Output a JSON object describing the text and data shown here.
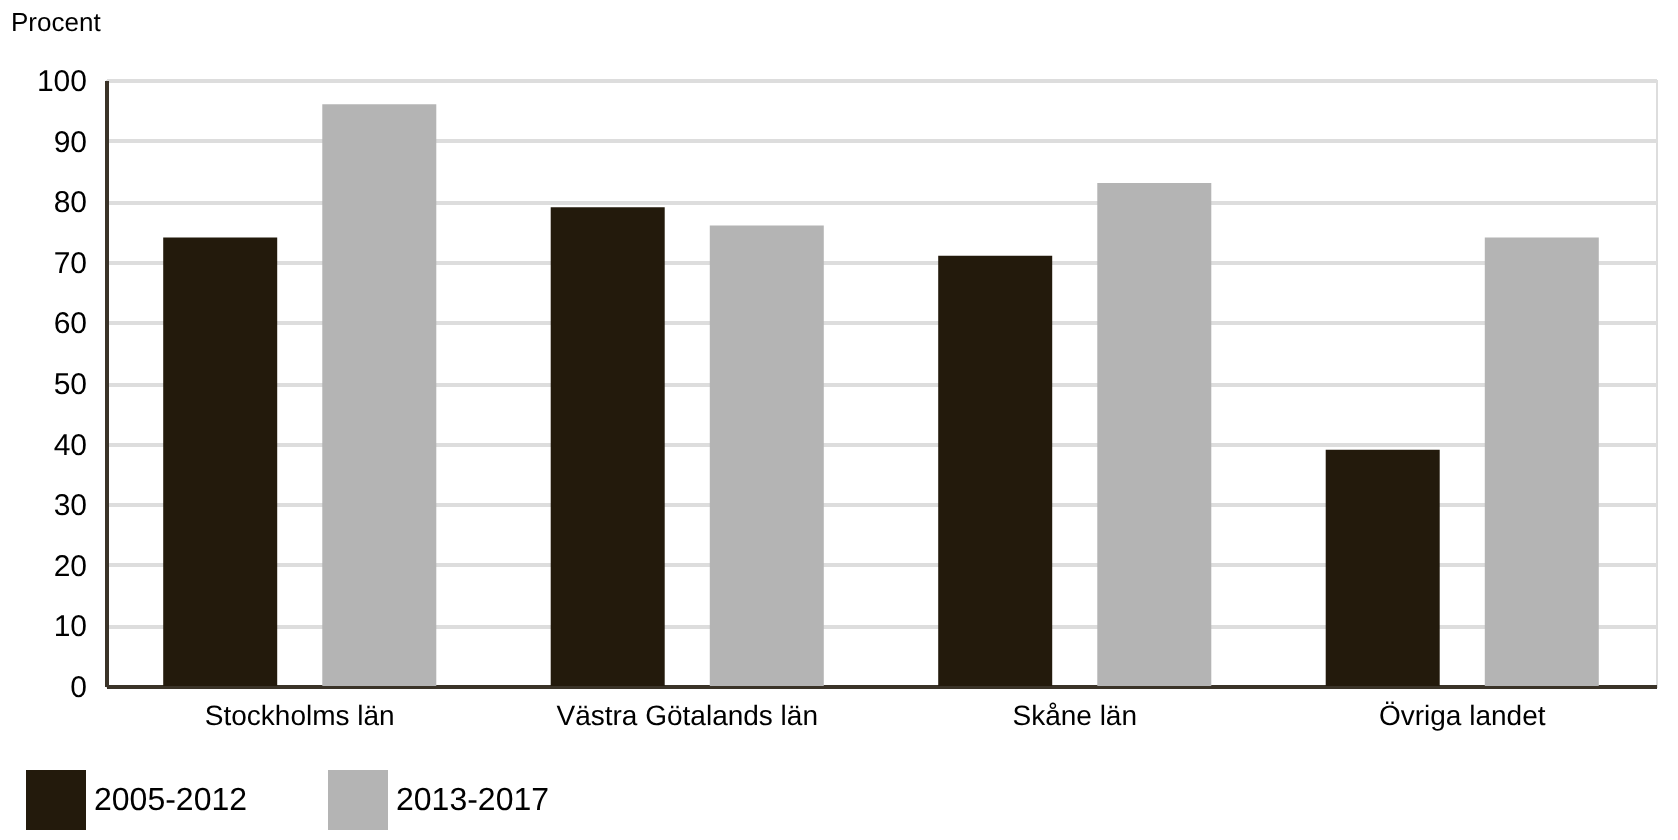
{
  "chart_data": {
    "type": "bar",
    "ylabel": "Procent",
    "categories": [
      "Stockholms län",
      "Västra Götalands län",
      "Skåne län",
      "Övriga landet"
    ],
    "series": [
      {
        "name": "2005-2012",
        "color": "#231a0c",
        "values": [
          74,
          79,
          71,
          39
        ]
      },
      {
        "name": "2013-2017",
        "color": "#b4b4b4",
        "values": [
          96,
          76,
          83,
          74
        ]
      }
    ],
    "ylim": [
      0,
      100
    ],
    "yticks": [
      0,
      10,
      20,
      30,
      40,
      50,
      60,
      70,
      80,
      90,
      100
    ],
    "grid": "y",
    "legend": "bottom left"
  }
}
